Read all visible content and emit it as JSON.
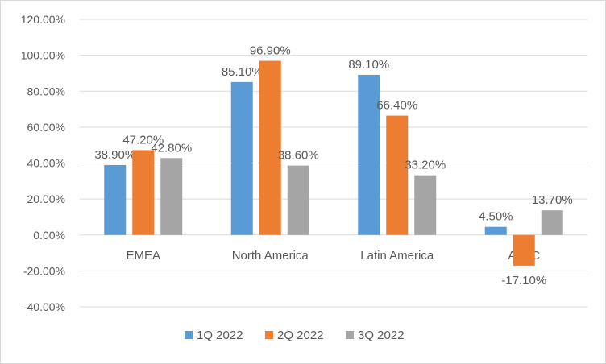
{
  "chart_data": {
    "type": "bar",
    "title": "",
    "xlabel": "",
    "ylabel": "",
    "categories": [
      "EMEA",
      "North America",
      "Latin America",
      "APAC"
    ],
    "series": [
      {
        "name": "1Q 2022",
        "color": "#5b9bd5",
        "values": [
          38.9,
          85.1,
          89.1,
          4.5
        ],
        "labels": [
          "38.90%",
          "85.10%",
          "89.10%",
          "4.50%"
        ]
      },
      {
        "name": "2Q 2022",
        "color": "#ed7d31",
        "values": [
          47.2,
          96.9,
          66.4,
          -17.1
        ],
        "labels": [
          "47.20%",
          "96.90%",
          "66.40%",
          "-17.10%"
        ]
      },
      {
        "name": "3Q 2022",
        "color": "#a5a5a5",
        "values": [
          42.8,
          38.6,
          33.2,
          13.7
        ],
        "labels": [
          "42.80%",
          "38.60%",
          "33.20%",
          "13.70%"
        ]
      }
    ],
    "ylim": [
      -40,
      120
    ],
    "y_ticks": [
      -40,
      -20,
      0,
      20,
      40,
      60,
      80,
      100,
      120
    ],
    "y_tick_labels": [
      "-40.00%",
      "-20.00%",
      "0.00%",
      "20.00%",
      "40.00%",
      "60.00%",
      "80.00%",
      "100.00%",
      "120.00%"
    ],
    "grid": true,
    "legend_position": "bottom"
  }
}
